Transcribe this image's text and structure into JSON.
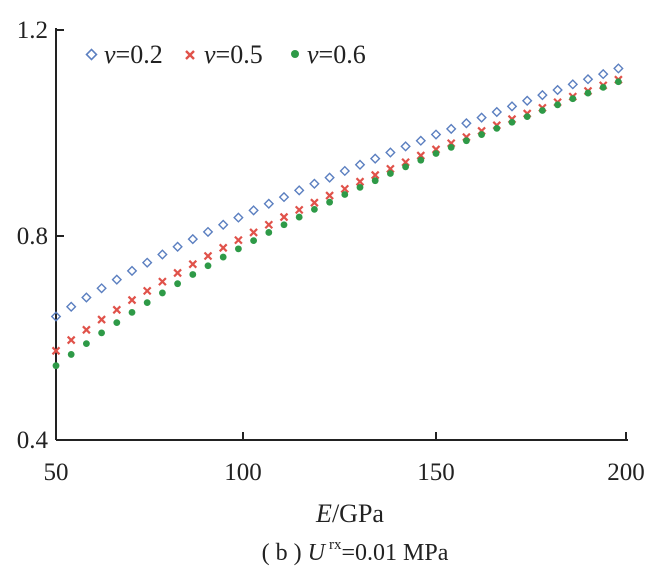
{
  "chart_data": {
    "type": "scatter",
    "title": "",
    "xlabel_var": "E",
    "xlabel_unit": "/GPa",
    "ylabel": "",
    "xlim": [
      50,
      200
    ],
    "ylim": [
      0.4,
      1.2
    ],
    "x_ticks": [
      "50",
      "100",
      "150",
      "200"
    ],
    "y_ticks": [
      "0.4",
      "0.8",
      "1.2"
    ],
    "x": [
      50,
      54,
      58,
      62,
      66,
      70,
      74,
      78,
      82,
      86,
      90,
      94,
      98,
      102,
      106,
      110,
      114,
      118,
      122,
      126,
      130,
      134,
      138,
      142,
      146,
      150,
      154,
      158,
      162,
      166,
      170,
      174,
      178,
      182,
      186,
      190,
      194,
      198
    ],
    "series": [
      {
        "name": "v=0.2",
        "var": "v",
        "val": "=0.2",
        "color": "#5b7fc0",
        "marker": "diamond",
        "values": [
          0.641,
          0.66,
          0.678,
          0.696,
          0.713,
          0.73,
          0.746,
          0.762,
          0.777,
          0.792,
          0.806,
          0.82,
          0.834,
          0.848,
          0.861,
          0.874,
          0.887,
          0.9,
          0.912,
          0.925,
          0.937,
          0.949,
          0.961,
          0.973,
          0.984,
          0.996,
          1.007,
          1.018,
          1.029,
          1.04,
          1.051,
          1.062,
          1.073,
          1.083,
          1.094,
          1.104,
          1.114,
          1.125
        ]
      },
      {
        "name": "v=0.5",
        "var": "v",
        "val": "=0.5",
        "color": "#e0524a",
        "marker": "cross",
        "values": [
          0.574,
          0.595,
          0.615,
          0.635,
          0.654,
          0.673,
          0.691,
          0.709,
          0.726,
          0.743,
          0.759,
          0.775,
          0.79,
          0.805,
          0.82,
          0.835,
          0.849,
          0.863,
          0.877,
          0.89,
          0.904,
          0.917,
          0.929,
          0.942,
          0.955,
          0.967,
          0.979,
          0.991,
          1.003,
          1.014,
          1.026,
          1.037,
          1.048,
          1.059,
          1.07,
          1.081,
          1.092,
          1.103
        ]
      },
      {
        "name": "v=0.6",
        "var": "v",
        "val": "=0.6",
        "color": "#2e9a47",
        "marker": "circle",
        "values": [
          0.545,
          0.567,
          0.588,
          0.609,
          0.629,
          0.649,
          0.668,
          0.687,
          0.705,
          0.723,
          0.74,
          0.757,
          0.773,
          0.789,
          0.805,
          0.82,
          0.835,
          0.85,
          0.864,
          0.879,
          0.893,
          0.906,
          0.92,
          0.933,
          0.946,
          0.959,
          0.971,
          0.984,
          0.996,
          1.008,
          1.02,
          1.031,
          1.043,
          1.054,
          1.066,
          1.077,
          1.088,
          1.099
        ]
      }
    ],
    "legend": "top-left",
    "grid": false
  },
  "caption": {
    "prefix": "( b ) ",
    "var": "U",
    "superscript": "rx",
    "suffix": "=0.01 MPa"
  }
}
